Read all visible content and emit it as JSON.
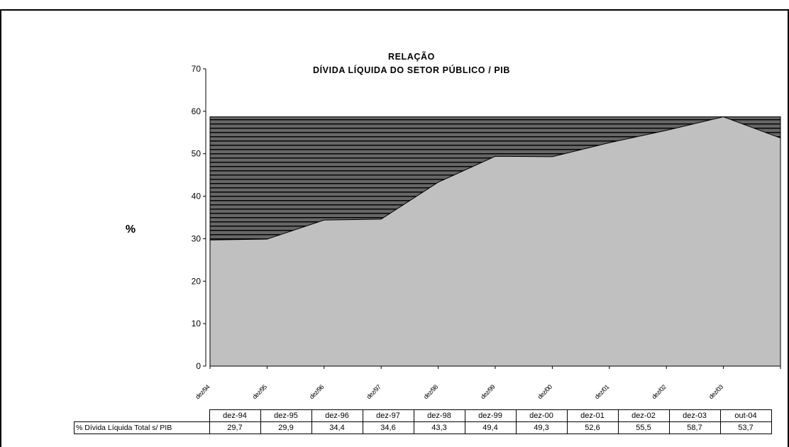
{
  "chart_data": {
    "type": "area",
    "title": "RELAÇÃO",
    "subtitle": "DÍVIDA LÍQUIDA DO SETOR PÚBLICO / PIB",
    "ylabel": "%",
    "ylim": [
      0,
      70
    ],
    "yticks": [
      0,
      10,
      20,
      30,
      40,
      50,
      60,
      70
    ],
    "categories": [
      "dez-94",
      "dez-95",
      "dez-96",
      "dez-97",
      "dez-98",
      "dez-99",
      "dez-00",
      "dez-01",
      "dez-02",
      "dez-03",
      "out-04"
    ],
    "axis_tick_labels": [
      "dez/94",
      "dez/95",
      "dez/96",
      "dez/97",
      "dez/98",
      "dez/99",
      "dez/00",
      "dez/01",
      "dez/02",
      "dez/03"
    ],
    "series": [
      {
        "name": "% Dívida Líquida Total s/ PIB",
        "values": [
          29.7,
          29.9,
          34.4,
          34.6,
          43.3,
          49.4,
          49.3,
          52.6,
          55.5,
          58.7,
          53.7
        ]
      }
    ],
    "value_labels": [
      "29,7",
      "29,9",
      "34,4",
      "34,6",
      "43,3",
      "49,4",
      "49,3",
      "52,6",
      "55,5",
      "58,7",
      "53,7"
    ],
    "max_band_level": 58.7,
    "colors": {
      "area_fill": "#c0c0c0",
      "band_fill": "#606060",
      "band_stripe": "#000000"
    },
    "grid": false
  }
}
